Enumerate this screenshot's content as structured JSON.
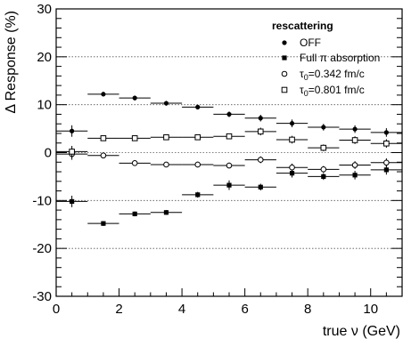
{
  "chart_data": {
    "type": "scatter",
    "title": "",
    "xlabel": "true ν (GeV)",
    "ylabel": "Δ Response (%)",
    "xlim": [
      0,
      11
    ],
    "ylim": [
      -30,
      30
    ],
    "x_ticks": [
      0,
      2,
      4,
      6,
      8,
      10
    ],
    "y_ticks": [
      -30,
      -20,
      -10,
      0,
      10,
      20,
      30
    ],
    "grid": "horizontal dotted at y = -20, -10, 0, 10, 20",
    "legend": {
      "title": "rescattering",
      "placement": "top-right",
      "entries": [
        {
          "label": "OFF",
          "marker": "filled-circle"
        },
        {
          "label_prefix": "Full ",
          "label_symbol": "π",
          "label_suffix": " absorption",
          "marker": "filled-square"
        },
        {
          "label_symbol": "τ",
          "label_sub": "0",
          "label_suffix": "=0.342 fm/c",
          "marker": "open-circle"
        },
        {
          "label_symbol": "τ",
          "label_sub": "0",
          "label_suffix": "=0.801 fm/c",
          "marker": "open-square"
        }
      ]
    },
    "x_bins": [
      [
        0,
        1
      ],
      [
        1,
        2
      ],
      [
        2,
        3
      ],
      [
        3,
        4
      ],
      [
        4,
        5
      ],
      [
        5,
        6
      ],
      [
        6,
        7
      ],
      [
        7,
        8
      ],
      [
        8,
        9
      ],
      [
        9,
        10
      ],
      [
        10,
        11
      ]
    ],
    "x": [
      0.5,
      1.5,
      2.5,
      3.5,
      4.5,
      5.5,
      6.5,
      7.5,
      8.5,
      9.5,
      10.5
    ],
    "series": [
      {
        "marker": "filled-circle",
        "values": [
          4.5,
          12.2,
          11.4,
          10.3,
          9.5,
          8.0,
          7.2,
          6.1,
          5.3,
          4.9,
          4.2
        ],
        "errors": [
          1.2,
          0.5,
          0.5,
          0.5,
          0.5,
          0.6,
          0.7,
          0.8,
          0.7,
          0.8,
          0.9
        ]
      },
      {
        "marker": "filled-square",
        "values": [
          -10.2,
          -14.8,
          -12.8,
          -12.5,
          -8.8,
          -6.8,
          -7.2,
          -4.3,
          -5.0,
          -4.7,
          -3.6
        ],
        "errors": [
          1.2,
          0.5,
          0.5,
          0.5,
          0.6,
          1.0,
          0.7,
          0.9,
          0.7,
          0.9,
          1.0
        ]
      },
      {
        "marker": "open-circle",
        "values": [
          -0.3,
          -0.6,
          -2.2,
          -2.5,
          -2.5,
          -2.7,
          -1.5,
          -3.1,
          -3.5,
          -2.6,
          -2.1
        ],
        "errors": [
          1.2,
          0.5,
          0.5,
          0.5,
          0.6,
          0.6,
          0.7,
          0.8,
          0.7,
          0.8,
          0.9
        ]
      },
      {
        "marker": "open-square",
        "values": [
          0.2,
          3.0,
          3.0,
          3.2,
          3.2,
          3.4,
          4.4,
          2.7,
          1.0,
          2.6,
          1.9
        ],
        "errors": [
          1.2,
          0.5,
          0.5,
          0.5,
          0.6,
          0.6,
          0.8,
          0.8,
          0.7,
          0.8,
          0.9
        ]
      }
    ]
  }
}
